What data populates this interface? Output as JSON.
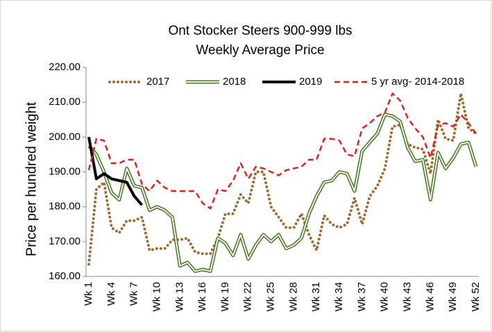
{
  "chart_data": {
    "type": "line",
    "title": "Ont Stocker Steers 900-999 lbs",
    "subtitle": "Weekly Average Price",
    "y_label": "Price per hundred weight",
    "categories": [
      "Wk 1",
      null,
      null,
      "Wk 4",
      null,
      null,
      "Wk 7",
      null,
      null,
      "Wk 10",
      null,
      null,
      "Wk 13",
      null,
      null,
      "Wk 16",
      null,
      null,
      "Wk 19",
      null,
      null,
      "Wk 22",
      null,
      null,
      "Wk 25",
      null,
      null,
      "Wk 28",
      null,
      null,
      "Wk 31",
      null,
      null,
      "Wk 34",
      null,
      null,
      "Wk 37",
      null,
      null,
      "Wk 40",
      null,
      null,
      "Wk 43",
      null,
      null,
      "Wk 46",
      null,
      null,
      "Wk 49",
      null,
      null,
      "Wk 52"
    ],
    "ylim": [
      160,
      220
    ],
    "yticks": [
      {
        "value": 160,
        "label": "160.00"
      },
      {
        "value": 170,
        "label": "170.00"
      },
      {
        "value": 180,
        "label": "180.00"
      },
      {
        "value": 190,
        "label": "190.00"
      },
      {
        "value": 200,
        "label": "200.00"
      },
      {
        "value": 210,
        "label": "210.00"
      },
      {
        "value": 220,
        "label": "220.00"
      }
    ],
    "grid": false,
    "legend": "top",
    "series": [
      {
        "name": "2017",
        "color": "#9c6b30",
        "style": "dotted",
        "values": [
          163.5,
          185,
          187,
          174,
          172.5,
          176,
          176,
          177,
          167.5,
          168,
          168,
          170.5,
          170.5,
          171,
          167,
          166.5,
          166.5,
          171,
          178,
          178,
          183.5,
          181,
          190,
          190,
          180,
          177,
          174,
          174,
          178,
          172,
          167.5,
          177.5,
          175,
          174,
          175,
          182.5,
          175,
          183,
          186,
          191,
          203,
          203.5,
          198,
          197,
          196.5,
          189.5,
          205,
          199.5,
          199,
          212.5,
          202.5,
          201
        ]
      },
      {
        "name": "2018",
        "color": "#4f7a28",
        "style": "double",
        "values": [
          197.5,
          195,
          190,
          184,
          182,
          191,
          186,
          185.5,
          179,
          180,
          179,
          177,
          163,
          164,
          161.5,
          162,
          161.5,
          171,
          169.5,
          166,
          172,
          165,
          169,
          172,
          170,
          172,
          168,
          169,
          171,
          178,
          183,
          187,
          187.5,
          190,
          189.5,
          184.5,
          196,
          198.5,
          201,
          206.5,
          206,
          204.5,
          197,
          193,
          193.5,
          182,
          195.5,
          191,
          194,
          198,
          198.5,
          191.5
        ]
      },
      {
        "name": "2019",
        "color": "#000000",
        "style": "solid",
        "values": [
          200,
          188,
          189.5,
          188,
          187.5,
          187,
          183,
          180.5,
          null,
          null,
          null,
          null,
          null,
          null,
          null,
          null,
          null,
          null,
          null,
          null,
          null,
          null,
          null,
          null,
          null,
          null,
          null,
          null,
          null,
          null,
          null,
          null,
          null,
          null,
          null,
          null,
          null,
          null,
          null,
          null,
          null,
          null,
          null,
          null,
          null,
          null,
          null,
          null,
          null,
          null,
          null,
          null
        ]
      },
      {
        "name": "5 yr avg- 2014-2018",
        "color": "#e0201b",
        "style": "dashed",
        "values": [
          190.5,
          199.5,
          199,
          192.5,
          192.5,
          193.5,
          193.5,
          186.5,
          184.5,
          187.5,
          185.5,
          184.5,
          184.5,
          184.5,
          184.5,
          181,
          179.5,
          185,
          184.5,
          187.5,
          192.5,
          188,
          191.5,
          191,
          190,
          189,
          190.5,
          191,
          191.5,
          193.5,
          193.5,
          199.5,
          199.5,
          199,
          195,
          194.5,
          202.5,
          204,
          206,
          207,
          212.5,
          210.5,
          205.5,
          202.5,
          200,
          194,
          203.5,
          204,
          203,
          206.5,
          204,
          201
        ]
      }
    ]
  }
}
